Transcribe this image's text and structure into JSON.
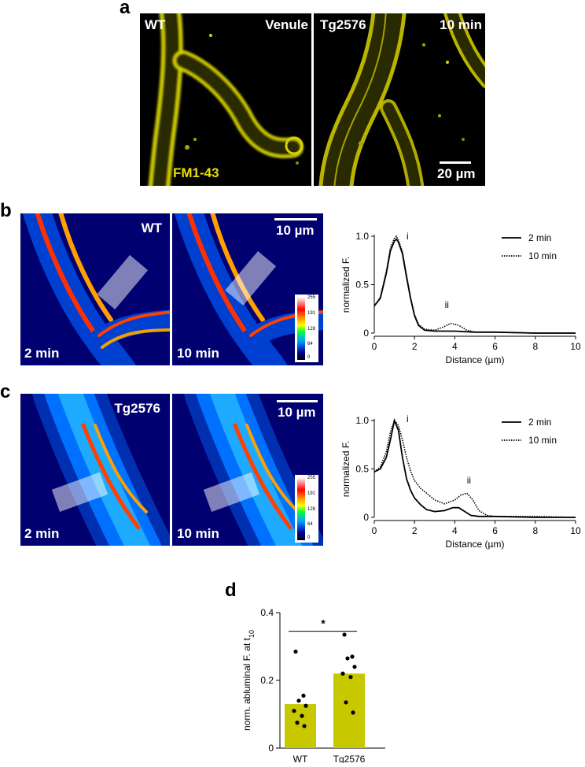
{
  "panel_a": {
    "letter": "a",
    "left_label_genotype": "WT",
    "left_label_vessel": "Venule",
    "right_label_genotype": "Tg2576",
    "right_label_time": "10 min",
    "dye_label": "FM1-43",
    "scale_bar_label": "20 µm",
    "colors": {
      "vessel": "#e6e000",
      "background": "#000000"
    }
  },
  "panel_b": {
    "letter": "b",
    "genotype_label": "WT",
    "left_time_label": "2 min",
    "right_time_label": "10 min",
    "scale_bar_label": "10 µm",
    "colorbar_ticks": [
      "255",
      "191",
      "128",
      "64",
      "0"
    ]
  },
  "panel_c": {
    "letter": "c",
    "genotype_label": "Tg2576",
    "left_time_label": "2 min",
    "right_time_label": "10 min",
    "scale_bar_label": "10 µm",
    "colorbar_ticks": [
      "255",
      "191",
      "128",
      "64",
      "0"
    ]
  },
  "panel_d": {
    "letter": "d"
  },
  "chart_data": [
    {
      "type": "line",
      "panel": "b",
      "xlabel": "Distance (µm)",
      "ylabel": "normalized F.",
      "xlim": [
        0,
        10
      ],
      "ylim": [
        0,
        1.0
      ],
      "xticks": [
        "0",
        "2",
        "4",
        "6",
        "8",
        "10"
      ],
      "yticks": [
        "0",
        "0.5",
        "1.0"
      ],
      "peak_labels": [
        "i",
        "ii"
      ],
      "legend_position": "top-right",
      "series": [
        {
          "name": "2 min",
          "style": "solid",
          "x": [
            0,
            0.3,
            0.6,
            0.8,
            1.0,
            1.1,
            1.2,
            1.4,
            1.6,
            1.8,
            2.0,
            2.2,
            2.5,
            3.0,
            4.0,
            5.0,
            6.0,
            8.0,
            10.0
          ],
          "y": [
            0.28,
            0.36,
            0.62,
            0.85,
            0.95,
            0.97,
            0.94,
            0.82,
            0.58,
            0.36,
            0.18,
            0.08,
            0.03,
            0.02,
            0.02,
            0.01,
            0.01,
            0.0,
            0.0
          ]
        },
        {
          "name": "10 min",
          "style": "dotted",
          "x": [
            0,
            0.3,
            0.6,
            0.8,
            1.0,
            1.1,
            1.2,
            1.4,
            1.6,
            1.8,
            2.0,
            2.2,
            2.5,
            3.0,
            3.4,
            3.8,
            4.2,
            4.6,
            5.0,
            6.0,
            8.0,
            10.0
          ],
          "y": [
            0.28,
            0.37,
            0.64,
            0.88,
            0.98,
            1.0,
            0.96,
            0.84,
            0.6,
            0.37,
            0.19,
            0.09,
            0.04,
            0.03,
            0.06,
            0.1,
            0.08,
            0.03,
            0.01,
            0.01,
            0.0,
            0.0
          ]
        }
      ]
    },
    {
      "type": "line",
      "panel": "c",
      "xlabel": "Distance (µm)",
      "ylabel": "normalized F.",
      "xlim": [
        0,
        10
      ],
      "ylim": [
        0,
        1.0
      ],
      "xticks": [
        "0",
        "2",
        "4",
        "6",
        "8",
        "10"
      ],
      "yticks": [
        "0",
        "0.5",
        "1.0"
      ],
      "peak_labels": [
        "i",
        "ii"
      ],
      "legend_position": "top-right",
      "series": [
        {
          "name": "2 min",
          "style": "solid",
          "x": [
            0,
            0.3,
            0.6,
            0.8,
            1.0,
            1.2,
            1.4,
            1.6,
            1.8,
            2.0,
            2.3,
            2.6,
            3.0,
            3.5,
            3.9,
            4.2,
            4.5,
            4.8,
            5.2,
            6.0,
            8.0,
            10.0
          ],
          "y": [
            0.47,
            0.5,
            0.62,
            0.8,
            1.0,
            0.9,
            0.62,
            0.4,
            0.28,
            0.2,
            0.13,
            0.08,
            0.06,
            0.07,
            0.1,
            0.1,
            0.06,
            0.02,
            0.01,
            0.01,
            0.0,
            0.0
          ]
        },
        {
          "name": "10 min",
          "style": "dotted",
          "x": [
            0,
            0.3,
            0.6,
            0.8,
            1.0,
            1.2,
            1.4,
            1.6,
            1.8,
            2.0,
            2.3,
            2.6,
            3.0,
            3.5,
            4.0,
            4.3,
            4.6,
            4.9,
            5.2,
            5.6,
            6.0,
            8.0,
            10.0
          ],
          "y": [
            0.47,
            0.52,
            0.68,
            0.88,
            1.0,
            0.95,
            0.8,
            0.62,
            0.48,
            0.38,
            0.3,
            0.25,
            0.18,
            0.14,
            0.18,
            0.23,
            0.25,
            0.18,
            0.07,
            0.02,
            0.01,
            0.01,
            0.0
          ]
        }
      ]
    },
    {
      "type": "bar",
      "panel": "d",
      "categories": [
        "WT",
        "Tg2576"
      ],
      "values": [
        0.13,
        0.22
      ],
      "ylabel": "norm. abluminal F. at t",
      "ylabel_subscript": "10",
      "ylim": [
        0,
        0.4
      ],
      "yticks": [
        "0",
        "0.2",
        "0.4"
      ],
      "bar_color": "#c8c800",
      "significance": "*",
      "points": [
        [
          0.285,
          0.155,
          0.14,
          0.125,
          0.11,
          0.095,
          0.075,
          0.065
        ],
        [
          0.335,
          0.27,
          0.265,
          0.24,
          0.22,
          0.21,
          0.135,
          0.105
        ]
      ]
    }
  ]
}
